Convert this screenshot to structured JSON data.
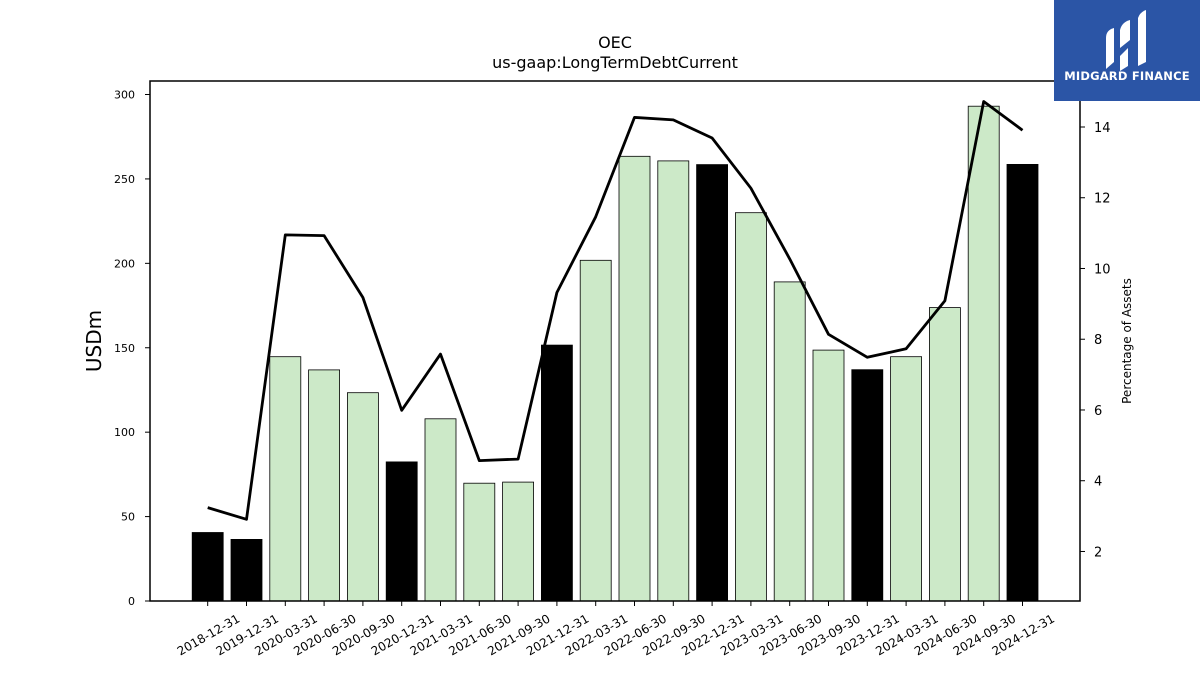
{
  "logo": {
    "text": "MIDGARD FINANCE",
    "icon": "midgard-m-logo-icon",
    "background": "#2b55a6"
  },
  "colors": {
    "bar_annual": "#000000",
    "bar_quarterly": "#cce9c8",
    "line": "#000000"
  },
  "chart_data": {
    "type": "bar",
    "title": "OEC",
    "subtitle": "us-gaap:LongTermDebtCurrent",
    "ylabel": "USDm",
    "y2label": "Percentage of Assets",
    "ylim": [
      0,
      308
    ],
    "y2lim": [
      0.6,
      15.3
    ],
    "yticks": [
      0,
      50,
      100,
      150,
      200,
      250,
      300
    ],
    "y2ticks": [
      2,
      4,
      6,
      8,
      10,
      12,
      14
    ],
    "categories": [
      "2018-12-31",
      "2019-12-31",
      "2020-03-31",
      "2020-06-30",
      "2020-09-30",
      "2020-12-31",
      "2021-03-31",
      "2021-06-30",
      "2021-09-30",
      "2021-12-31",
      "2022-03-31",
      "2022-06-30",
      "2022-09-30",
      "2022-12-31",
      "2023-03-31",
      "2023-06-30",
      "2023-09-30",
      "2023-12-31",
      "2024-03-31",
      "2024-06-30",
      "2024-09-30",
      "2024-12-31"
    ],
    "series": [
      {
        "type": "bar",
        "values": [
          40.6,
          36.5,
          144.7,
          136.9,
          123.4,
          82.4,
          107.9,
          69.8,
          70.4,
          151.6,
          201.8,
          263.4,
          260.7,
          258.5,
          230.0,
          189.0,
          148.6,
          137.0,
          144.7,
          173.8,
          293.1,
          258.6
        ],
        "annual": [
          true,
          true,
          false,
          false,
          false,
          true,
          false,
          false,
          false,
          true,
          false,
          false,
          false,
          true,
          false,
          false,
          false,
          true,
          false,
          false,
          false,
          true
        ]
      },
      {
        "type": "line",
        "axis": "right",
        "values": [
          3.24,
          2.91,
          10.95,
          10.93,
          9.18,
          5.99,
          7.58,
          4.57,
          4.61,
          9.32,
          11.46,
          14.27,
          14.2,
          13.69,
          12.27,
          10.27,
          8.14,
          7.49,
          7.73,
          9.09,
          14.72,
          13.91
        ]
      }
    ],
    "grid": false,
    "legend": "none"
  }
}
